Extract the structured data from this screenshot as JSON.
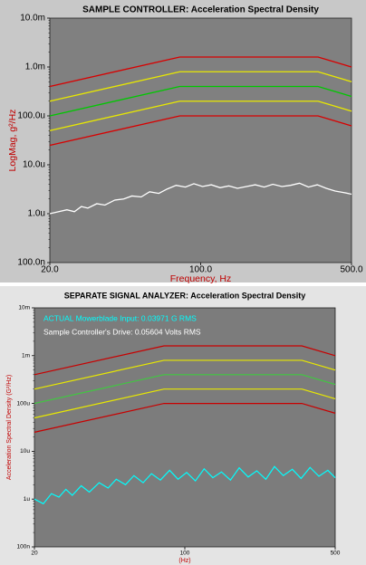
{
  "chart_data": [
    {
      "type": "line",
      "title": "SAMPLE CONTROLLER:  Acceleration Spectral Density",
      "ylabel": "LogMag, g²/Hz",
      "xlabel": "Frequency, Hz",
      "log_x": true,
      "log_y": true,
      "xlim": [
        20,
        500
      ],
      "xticks": [
        {
          "value": 20,
          "label": "20.0"
        },
        {
          "value": 100,
          "label": "100.0"
        },
        {
          "value": 500,
          "label": "500.0"
        }
      ],
      "ylim": [
        1e-07,
        0.01
      ],
      "yticks": [
        {
          "value": 0.01,
          "label": "10.0m"
        },
        {
          "value": 0.001,
          "label": "1.0m"
        },
        {
          "value": 0.0001,
          "label": "100.0u"
        },
        {
          "value": 1e-05,
          "label": "10.0u"
        },
        {
          "value": 1e-06,
          "label": "1.0u"
        },
        {
          "value": 1e-07,
          "label": "100.0n"
        }
      ],
      "series": [
        {
          "color": "#d80000",
          "x": [
            20,
            80,
            350,
            500
          ],
          "values": [
            0.0004,
            0.0016,
            0.0016,
            0.001
          ]
        },
        {
          "color": "#e8e800",
          "x": [
            20,
            80,
            350,
            500
          ],
          "values": [
            0.0002,
            0.0008,
            0.0008,
            0.0005
          ]
        },
        {
          "color": "#00c800",
          "x": [
            20,
            80,
            350,
            500
          ],
          "values": [
            0.0001,
            0.0004,
            0.0004,
            0.00025
          ]
        },
        {
          "color": "#e8e800",
          "x": [
            20,
            80,
            350,
            500
          ],
          "values": [
            5e-05,
            0.0002,
            0.0002,
            0.000125
          ]
        },
        {
          "color": "#d80000",
          "x": [
            20,
            80,
            350,
            500
          ],
          "values": [
            2.5e-05,
            0.0001,
            0.0001,
            6.25e-05
          ]
        },
        {
          "color": "#ffffff",
          "x": [
            20,
            22,
            24,
            26,
            28,
            30,
            33,
            36,
            40,
            44,
            48,
            53,
            58,
            64,
            70,
            77,
            85,
            93,
            102,
            112,
            123,
            135,
            148,
            163,
            179,
            197,
            216,
            238,
            261,
            287,
            316,
            347,
            382,
            420,
            462,
            500
          ],
          "values": [
            1e-06,
            1.1e-06,
            1.2e-06,
            1.1e-06,
            1.4e-06,
            1.3e-06,
            1.6e-06,
            1.5e-06,
            1.9e-06,
            2e-06,
            2.3e-06,
            2.2e-06,
            2.8e-06,
            2.6e-06,
            3.2e-06,
            3.8e-06,
            3.5e-06,
            4.1e-06,
            3.6e-06,
            3.9e-06,
            3.4e-06,
            3.7e-06,
            3.3e-06,
            3.6e-06,
            3.9e-06,
            3.5e-06,
            4e-06,
            3.6e-06,
            3.8e-06,
            4.2e-06,
            3.5e-06,
            3.9e-06,
            3.3e-06,
            2.9e-06,
            2.7e-06,
            2.5e-06
          ]
        }
      ]
    },
    {
      "type": "line",
      "title": "SEPARATE SIGNAL ANALYZER:  Acceleration Spectral Density",
      "ylabel": "Acceleration Spectral Density (G²/Hz)",
      "xlabel": "(Hz)",
      "log_x": true,
      "log_y": true,
      "xlim": [
        20,
        500
      ],
      "xticks": [
        20,
        100,
        500
      ],
      "ylim": [
        1e-07,
        0.01
      ],
      "yticks": [
        {
          "value": 0.01,
          "label": "10m"
        },
        {
          "value": 0.001,
          "label": "1m"
        },
        {
          "value": 0.0001,
          "label": "100u"
        },
        {
          "value": 1e-05,
          "label": "10u"
        },
        {
          "value": 1e-06,
          "label": "1u"
        },
        {
          "value": 1e-07,
          "label": "100n"
        }
      ],
      "annotations": [
        {
          "text": "ACTUAL Mowerblade Input: 0.03971 G RMS",
          "color": "#00ffff"
        },
        {
          "text": "Sample Controller's Drive: 0.05604 Volts RMS",
          "color": "#ffffff"
        }
      ],
      "series": [
        {
          "color": "#c80000",
          "x": [
            20,
            80,
            350,
            500
          ],
          "values": [
            0.0004,
            0.0016,
            0.0016,
            0.001
          ]
        },
        {
          "color": "#e8e800",
          "x": [
            20,
            80,
            350,
            500
          ],
          "values": [
            0.0002,
            0.0008,
            0.0008,
            0.0005
          ]
        },
        {
          "color": "#40c840",
          "x": [
            20,
            80,
            350,
            500
          ],
          "values": [
            0.0001,
            0.0004,
            0.0004,
            0.00025
          ]
        },
        {
          "color": "#e8e800",
          "x": [
            20,
            80,
            350,
            500
          ],
          "values": [
            5e-05,
            0.0002,
            0.0002,
            0.000125
          ]
        },
        {
          "color": "#c80000",
          "x": [
            20,
            80,
            350,
            500
          ],
          "values": [
            2.5e-05,
            0.0001,
            0.0001,
            6.25e-05
          ]
        },
        {
          "color": "#00ffff",
          "x": [
            20,
            22,
            24,
            26,
            28,
            30,
            33,
            36,
            40,
            44,
            48,
            53,
            58,
            64,
            70,
            77,
            85,
            93,
            102,
            112,
            123,
            135,
            148,
            163,
            179,
            197,
            216,
            238,
            261,
            287,
            316,
            347,
            382,
            420,
            462,
            500
          ],
          "values": [
            1e-06,
            8e-07,
            1.3e-06,
            1.1e-06,
            1.6e-06,
            1.2e-06,
            1.9e-06,
            1.4e-06,
            2.2e-06,
            1.7e-06,
            2.6e-06,
            2e-06,
            3.1e-06,
            2.2e-06,
            3.4e-06,
            2.5e-06,
            4e-06,
            2.6e-06,
            3.6e-06,
            2.4e-06,
            4.3e-06,
            2.8e-06,
            3.7e-06,
            2.5e-06,
            4.5e-06,
            2.9e-06,
            3.9e-06,
            2.6e-06,
            4.8e-06,
            3.1e-06,
            4.2e-06,
            2.7e-06,
            4.6e-06,
            3e-06,
            4e-06,
            2.8e-06
          ]
        }
      ]
    }
  ]
}
